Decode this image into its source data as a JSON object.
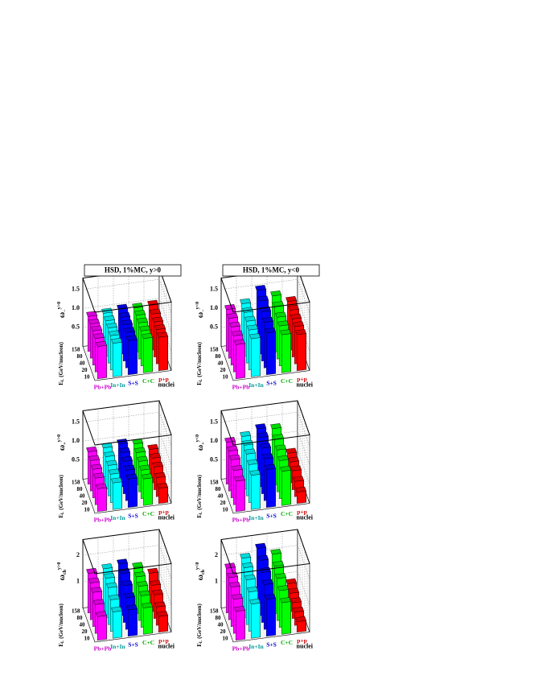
{
  "chart_data": [
    {
      "type": "bar3d",
      "title": "HSD, 1%MC, y>0",
      "zlabel": "ω",
      "zlabel_sub": "−",
      "zlabel_sup": "y>0",
      "elabel": "E",
      "elabel_sub": "L",
      "elabel_rest": "(GeV/nucleon)",
      "xlabel": "nuclei",
      "categories": [
        "Pb+Pb",
        "In+In",
        "S+S",
        "C+C",
        "p+p"
      ],
      "energies": [
        10,
        20,
        40,
        80,
        158
      ],
      "colors": [
        "#ff00ff",
        "#00ffff",
        "#0000ff",
        "#00ff00",
        "#ff0000"
      ],
      "label_colors": [
        "#cc00cc",
        "#009999",
        "#0000cc",
        "#00aa00",
        "#cc0000"
      ],
      "zlim": [
        0,
        1.8
      ],
      "zticks": [
        0.5,
        {
          "value": 1,
          "label": "1.0"
        },
        1.5
      ],
      "values": [
        [
          0.85,
          0.88,
          0.9,
          0.9,
          0.92
        ],
        [
          0.88,
          0.9,
          0.92,
          0.93,
          0.95
        ],
        [
          0.9,
          0.93,
          0.95,
          0.97,
          1.0
        ],
        [
          0.9,
          0.92,
          0.95,
          0.97,
          0.98
        ],
        [
          0.88,
          0.9,
          0.92,
          0.95,
          1.0
        ]
      ]
    },
    {
      "type": "bar3d",
      "title": "HSD, 1%MC, y<0",
      "zlabel": "ω",
      "zlabel_sub": "−",
      "zlabel_sup": "y<0",
      "elabel": "E",
      "elabel_sub": "L",
      "elabel_rest": "(GeV/nucleon)",
      "xlabel": "nuclei",
      "categories": [
        "Pb+Pb",
        "In+In",
        "S+S",
        "C+C",
        "p+p"
      ],
      "energies": [
        10,
        20,
        40,
        80,
        158
      ],
      "colors": [
        "#ff00ff",
        "#00ffff",
        "#0000ff",
        "#00ff00",
        "#ff0000"
      ],
      "label_colors": [
        "#cc00cc",
        "#009999",
        "#0000cc",
        "#00aa00",
        "#cc0000"
      ],
      "zlim": [
        0,
        1.8
      ],
      "zticks": [
        0.5,
        {
          "value": 1,
          "label": "1.0"
        },
        1.5
      ],
      "values": [
        [
          0.9,
          0.95,
          1.0,
          1.05,
          1.1
        ],
        [
          1.0,
          1.05,
          1.1,
          1.15,
          1.2
        ],
        [
          1.1,
          1.2,
          1.3,
          1.4,
          1.5
        ],
        [
          1.0,
          1.05,
          1.1,
          1.2,
          1.3
        ],
        [
          0.95,
          0.98,
          1.0,
          1.05,
          1.1
        ]
      ]
    },
    {
      "type": "bar3d",
      "zlabel": "ω",
      "zlabel_sub": "+",
      "zlabel_sup": "y>0",
      "elabel": "E",
      "elabel_sub": "L",
      "elabel_rest": "(GeV/nucleon)",
      "xlabel": "nuclei",
      "categories": [
        "Pb+Pb",
        "In+In",
        "S+S",
        "C+C",
        "p+p"
      ],
      "energies": [
        10,
        20,
        40,
        80,
        158
      ],
      "colors": [
        "#ff00ff",
        "#00ffff",
        "#0000ff",
        "#00ff00",
        "#ff0000"
      ],
      "label_colors": [
        "#cc00cc",
        "#009999",
        "#0000cc",
        "#00aa00",
        "#cc0000"
      ],
      "zlim": [
        0,
        1.8
      ],
      "zticks": [
        0.5,
        {
          "value": 1,
          "label": "1.0"
        },
        1.5
      ],
      "values": [
        [
          0.6,
          0.7,
          0.75,
          0.8,
          0.85
        ],
        [
          0.7,
          0.75,
          0.8,
          0.85,
          0.9
        ],
        [
          0.75,
          0.8,
          0.85,
          0.9,
          0.95
        ],
        [
          0.7,
          0.75,
          0.8,
          0.85,
          0.9
        ],
        [
          0.4,
          0.5,
          0.6,
          0.65,
          0.7
        ]
      ]
    },
    {
      "type": "bar3d",
      "zlabel": "ω",
      "zlabel_sub": "+",
      "zlabel_sup": "y<0",
      "elabel": "E",
      "elabel_sub": "L",
      "elabel_rest": "(GeV/nucleon)",
      "xlabel": "nuclei",
      "categories": [
        "Pb+Pb",
        "In+In",
        "S+S",
        "C+C",
        "p+p"
      ],
      "energies": [
        10,
        20,
        40,
        80,
        158
      ],
      "colors": [
        "#ff00ff",
        "#00ffff",
        "#0000ff",
        "#00ff00",
        "#ff0000"
      ],
      "label_colors": [
        "#cc00cc",
        "#009999",
        "#0000cc",
        "#00aa00",
        "#cc0000"
      ],
      "zlim": [
        0,
        1.8
      ],
      "zticks": [
        0.5,
        {
          "value": 1,
          "label": "1.0"
        },
        1.5
      ],
      "values": [
        [
          0.8,
          0.9,
          1.0,
          1.05,
          1.1
        ],
        [
          0.9,
          1.0,
          1.1,
          1.15,
          1.2
        ],
        [
          1.0,
          1.1,
          1.2,
          1.3,
          1.35
        ],
        [
          0.9,
          1.0,
          1.1,
          1.2,
          1.3
        ],
        [
          0.3,
          0.4,
          0.5,
          0.55,
          0.6
        ]
      ]
    },
    {
      "type": "bar3d",
      "zlabel": "ω",
      "zlabel_sub": "ch",
      "zlabel_sup": "y>0",
      "elabel": "E",
      "elabel_sub": "L",
      "elabel_rest": "(GeV/nucleon)",
      "xlabel": "nuclei",
      "categories": [
        "Pb+Pb",
        "In+In",
        "S+S",
        "C+C",
        "p+p"
      ],
      "energies": [
        10,
        20,
        40,
        80,
        158
      ],
      "colors": [
        "#ff00ff",
        "#00ffff",
        "#0000ff",
        "#00ff00",
        "#ff0000"
      ],
      "label_colors": [
        "#cc00cc",
        "#009999",
        "#0000cc",
        "#00aa00",
        "#cc0000"
      ],
      "zlim": [
        0,
        2.6
      ],
      "zticks": [
        1,
        2
      ],
      "values": [
        [
          0.9,
          1.1,
          1.3,
          1.4,
          1.5
        ],
        [
          1.0,
          1.2,
          1.4,
          1.5,
          1.6
        ],
        [
          1.0,
          1.2,
          1.4,
          1.6,
          1.7
        ],
        [
          1.0,
          1.2,
          1.3,
          1.4,
          1.5
        ],
        [
          0.6,
          0.7,
          0.9,
          1.0,
          1.2
        ]
      ]
    },
    {
      "type": "bar3d",
      "zlabel": "ω",
      "zlabel_sub": "ch",
      "zlabel_sup": "y<0",
      "elabel": "E",
      "elabel_sub": "L",
      "elabel_rest": "(GeV/nucleon)",
      "xlabel": "nuclei",
      "categories": [
        "Pb+Pb",
        "In+In",
        "S+S",
        "C+C",
        "p+p"
      ],
      "energies": [
        10,
        20,
        40,
        80,
        158
      ],
      "colors": [
        "#ff00ff",
        "#00ffff",
        "#0000ff",
        "#00ff00",
        "#ff0000"
      ],
      "label_colors": [
        "#cc00cc",
        "#009999",
        "#0000cc",
        "#00aa00",
        "#cc0000"
      ],
      "zlim": [
        0,
        2.6
      ],
      "zticks": [
        1,
        2
      ],
      "values": [
        [
          1.1,
          1.3,
          1.5,
          1.6,
          1.7
        ],
        [
          1.3,
          1.5,
          1.7,
          1.9,
          2.0
        ],
        [
          1.4,
          1.7,
          1.9,
          2.1,
          2.3
        ],
        [
          1.2,
          1.4,
          1.6,
          1.8,
          2.0
        ],
        [
          0.4,
          0.5,
          0.6,
          0.7,
          0.8
        ]
      ]
    }
  ]
}
